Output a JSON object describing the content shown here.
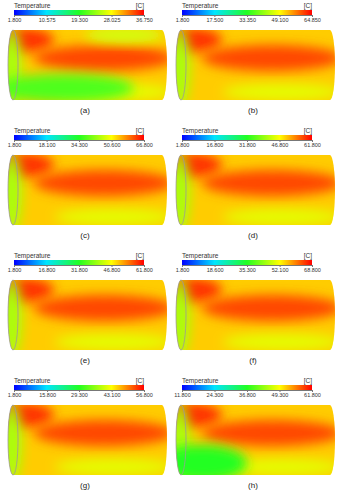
{
  "chart_data": [
    {
      "type": "contour",
      "title": "(a)",
      "colorbar_label": "Temperature",
      "colorbar_unit": "[C]",
      "colorbar_range": [
        1.8,
        36.75
      ],
      "colorbar_ticks": [
        {
          "value": 1.8,
          "label": "1.800"
        },
        {
          "value": 10.575,
          "label": "10.575"
        },
        {
          "value": 19.3,
          "label": "19.300"
        },
        {
          "value": 28.025,
          "label": "28.025"
        },
        {
          "value": 36.75,
          "label": "36.750"
        }
      ]
    },
    {
      "type": "contour",
      "title": "(b)",
      "colorbar_label": "Temperature",
      "colorbar_unit": "[C]",
      "colorbar_range": [
        1.8,
        64.85
      ],
      "colorbar_ticks": [
        {
          "value": 1.8,
          "label": "1.800"
        },
        {
          "value": 17.5,
          "label": "17.500"
        },
        {
          "value": 33.35,
          "label": "33.350"
        },
        {
          "value": 49.1,
          "label": "49.100"
        },
        {
          "value": 64.85,
          "label": "64.850"
        }
      ]
    },
    {
      "type": "contour",
      "title": "(c)",
      "colorbar_label": "Temperature",
      "colorbar_unit": "[C]",
      "colorbar_range": [
        1.8,
        66.8
      ],
      "colorbar_ticks": [
        {
          "value": 1.8,
          "label": "1.800"
        },
        {
          "value": 18.1,
          "label": "18.100"
        },
        {
          "value": 34.3,
          "label": "34.300"
        },
        {
          "value": 50.6,
          "label": "50.600"
        },
        {
          "value": 66.8,
          "label": "66.800"
        }
      ]
    },
    {
      "type": "contour",
      "title": "(d)",
      "colorbar_label": "Temperature",
      "colorbar_unit": "[C]",
      "colorbar_range": [
        1.8,
        61.8
      ],
      "colorbar_ticks": [
        {
          "value": 1.8,
          "label": "1.800"
        },
        {
          "value": 16.8,
          "label": "16.800"
        },
        {
          "value": 31.8,
          "label": "31.800"
        },
        {
          "value": 46.8,
          "label": "46.800"
        },
        {
          "value": 61.8,
          "label": "61.800"
        }
      ]
    },
    {
      "type": "contour",
      "title": "(e)",
      "colorbar_label": "Temperature",
      "colorbar_unit": "[C]",
      "colorbar_range": [
        1.8,
        61.8
      ],
      "colorbar_ticks": [
        {
          "value": 1.8,
          "label": "1.800"
        },
        {
          "value": 16.8,
          "label": "16.800"
        },
        {
          "value": 31.8,
          "label": "31.800"
        },
        {
          "value": 46.8,
          "label": "46.800"
        },
        {
          "value": 61.8,
          "label": "61.800"
        }
      ]
    },
    {
      "type": "contour",
      "title": "(f)",
      "colorbar_label": "Temperature",
      "colorbar_unit": "[C]",
      "colorbar_range": [
        1.8,
        68.8
      ],
      "colorbar_ticks": [
        {
          "value": 1.8,
          "label": "1.800"
        },
        {
          "value": 18.6,
          "label": "18.600"
        },
        {
          "value": 35.3,
          "label": "35.300"
        },
        {
          "value": 52.1,
          "label": "52.100"
        },
        {
          "value": 68.8,
          "label": "68.800"
        }
      ]
    },
    {
      "type": "contour",
      "title": "(g)",
      "colorbar_label": "Temperature",
      "colorbar_unit": "[C]",
      "colorbar_range": [
        1.8,
        56.8
      ],
      "colorbar_ticks": [
        {
          "value": 1.8,
          "label": "1.800"
        },
        {
          "value": 15.8,
          "label": "15.800"
        },
        {
          "value": 29.3,
          "label": "29.300"
        },
        {
          "value": 43.1,
          "label": "43.100"
        },
        {
          "value": 56.8,
          "label": "56.800"
        }
      ]
    },
    {
      "type": "contour",
      "title": "(h)",
      "colorbar_label": "Temperature",
      "colorbar_unit": "[C]",
      "colorbar_range": [
        11.8,
        61.8
      ],
      "colorbar_ticks": [
        {
          "value": 11.8,
          "label": "11.800"
        },
        {
          "value": 24.3,
          "label": "24.300"
        },
        {
          "value": 36.8,
          "label": "36.800"
        },
        {
          "value": 49.3,
          "label": "49.300"
        },
        {
          "value": 61.8,
          "label": "61.800"
        }
      ]
    }
  ]
}
